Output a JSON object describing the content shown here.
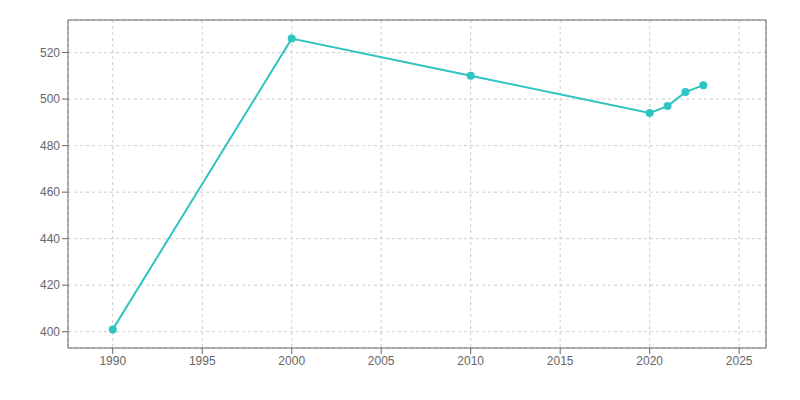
{
  "chart_data": {
    "type": "line",
    "x": [
      1990,
      2000,
      2010,
      2020,
      2021,
      2022,
      2023
    ],
    "series": [
      {
        "values": [
          401,
          526,
          510,
          494,
          497,
          503,
          506
        ],
        "color": "#2ec4c4",
        "marker": "circle"
      }
    ],
    "xlim": [
      1987.5,
      2026.5
    ],
    "ylim": [
      393,
      534
    ],
    "xticks": [
      1990,
      1995,
      2000,
      2005,
      2010,
      2015,
      2020,
      2025
    ],
    "yticks": [
      400,
      420,
      440,
      460,
      480,
      500,
      520
    ],
    "grid": true
  }
}
